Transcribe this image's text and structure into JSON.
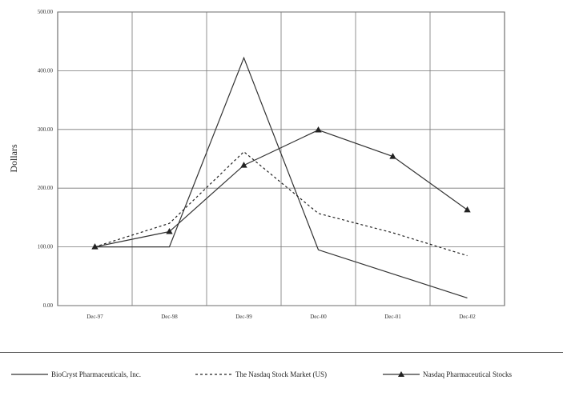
{
  "chart_data": {
    "type": "line",
    "categories": [
      "Dec-97",
      "Dec-98",
      "Dec-99",
      "Dec-00",
      "Dec-01",
      "Dec-02"
    ],
    "ylabel": "Dollars",
    "xlabel": "",
    "ylim": [
      0,
      500
    ],
    "yticks": [
      "0.00",
      "100.00",
      "200.00",
      "300.00",
      "400.00",
      "500.00"
    ],
    "grid": true,
    "legend_position": "bottom",
    "series": [
      {
        "name": "BioCryst Pharmaceuticals, Inc.",
        "style": "solid",
        "marker": "none",
        "color": "#333333",
        "points": [
          [
            0,
            100
          ],
          [
            1,
            100
          ],
          [
            2,
            422
          ],
          [
            3,
            95
          ],
          [
            5,
            13
          ]
        ]
      },
      {
        "name": "The Nasdaq Stock Market (US)",
        "style": "dashed",
        "marker": "none",
        "color": "#222222",
        "points": [
          [
            0,
            100
          ],
          [
            1,
            140
          ],
          [
            2,
            262
          ],
          [
            3,
            157
          ],
          [
            4,
            124
          ],
          [
            5,
            85
          ]
        ]
      },
      {
        "name": "Nasdaq Pharmaceutical Stocks",
        "style": "solid",
        "marker": "triangle",
        "color": "#333333",
        "points": [
          [
            0,
            100
          ],
          [
            1,
            126
          ],
          [
            2,
            239
          ],
          [
            3,
            299
          ],
          [
            4,
            254
          ],
          [
            5,
            163
          ]
        ]
      }
    ]
  }
}
